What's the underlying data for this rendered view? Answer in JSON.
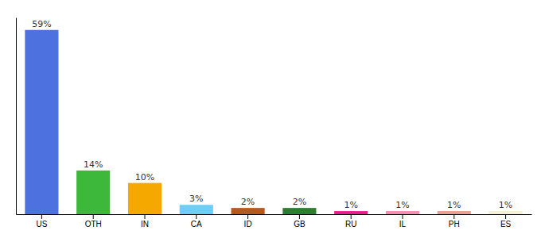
{
  "chart_data": {
    "type": "bar",
    "categories": [
      "US",
      "OTH",
      "IN",
      "CA",
      "ID",
      "GB",
      "RU",
      "IL",
      "PH",
      "ES"
    ],
    "values": [
      59,
      14,
      10,
      3,
      2,
      2,
      1,
      1,
      1,
      1
    ],
    "value_labels": [
      "59%",
      "14%",
      "10%",
      "3%",
      "2%",
      "2%",
      "1%",
      "1%",
      "1%",
      "1%"
    ],
    "colors": [
      "#4d72e0",
      "#3db83a",
      "#f5a800",
      "#6ecff6",
      "#b35a20",
      "#2d7d32",
      "#e81e8c",
      "#f48fb1",
      "#e8a090",
      "#f5f0d8"
    ],
    "ylim": [
      0,
      63
    ],
    "data_labels": true,
    "tick_labels": "x"
  }
}
